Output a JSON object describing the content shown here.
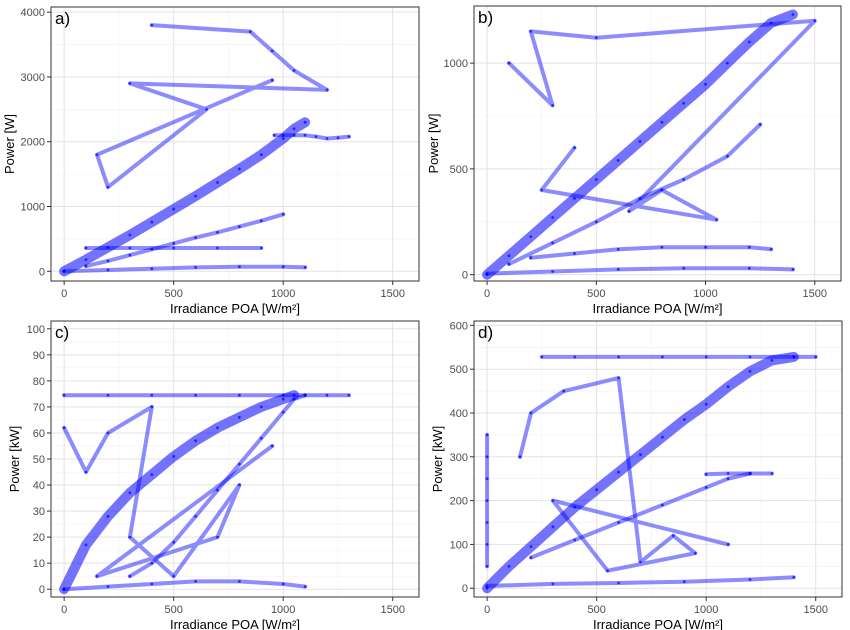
{
  "chart_data": [
    {
      "type": "scatter",
      "panel": "a)",
      "xlabel": "Irradiance POA [W/m²]",
      "ylabel": "Power [W]",
      "xlim": [
        -60,
        1620
      ],
      "ylim": [
        -150,
        4080
      ],
      "xticks": [
        0,
        500,
        1000,
        1500
      ],
      "yticks": [
        0,
        1000,
        2000,
        3000,
        4000
      ],
      "grid": true,
      "color": "#0000ff",
      "series": [
        {
          "points": [
            [
              0,
              0
            ],
            [
              100,
              180
            ],
            [
              200,
              370
            ],
            [
              300,
              560
            ],
            [
              400,
              760
            ],
            [
              500,
              960
            ],
            [
              600,
              1160
            ],
            [
              700,
              1370
            ],
            [
              800,
              1580
            ],
            [
              900,
              1800
            ],
            [
              1000,
              2050
            ],
            [
              1050,
              2200
            ],
            [
              1100,
              2300
            ]
          ]
        },
        {
          "points": [
            [
              100,
              80
            ],
            [
              200,
              160
            ],
            [
              300,
              250
            ],
            [
              400,
              340
            ],
            [
              500,
              430
            ],
            [
              600,
              520
            ],
            [
              700,
              600
            ],
            [
              800,
              690
            ],
            [
              900,
              780
            ],
            [
              1000,
              880
            ]
          ]
        },
        {
          "points": [
            [
              0,
              0
            ],
            [
              200,
              20
            ],
            [
              400,
              40
            ],
            [
              600,
              60
            ],
            [
              800,
              70
            ],
            [
              1000,
              70
            ],
            [
              1100,
              60
            ]
          ]
        },
        {
          "points": [
            [
              960,
              2100
            ],
            [
              1000,
              2100
            ],
            [
              1050,
              2100
            ],
            [
              1100,
              2100
            ],
            [
              1150,
              2080
            ],
            [
              1200,
              2050
            ],
            [
              1250,
              2060
            ],
            [
              1300,
              2080
            ]
          ]
        },
        {
          "points": [
            [
              100,
              360
            ],
            [
              300,
              360
            ],
            [
              500,
              360
            ],
            [
              700,
              360
            ],
            [
              900,
              360
            ]
          ]
        },
        {
          "points": [
            [
              400,
              3800
            ],
            [
              850,
              3700
            ],
            [
              950,
              3400
            ],
            [
              1050,
              3100
            ],
            [
              1200,
              2800
            ],
            [
              300,
              2900
            ],
            [
              650,
              2500
            ],
            [
              200,
              1300
            ],
            [
              150,
              1800
            ],
            [
              950,
              2950
            ]
          ]
        }
      ]
    },
    {
      "type": "scatter",
      "panel": "b)",
      "xlabel": "Irradiance POA [W/m²]",
      "ylabel": "Power [W]",
      "xlim": [
        -60,
        1620
      ],
      "ylim": [
        -30,
        1270
      ],
      "xticks": [
        0,
        500,
        1000,
        1500
      ],
      "yticks": [
        0,
        500,
        1000
      ],
      "grid": true,
      "color": "#0000ff",
      "series": [
        {
          "points": [
            [
              0,
              0
            ],
            [
              100,
              90
            ],
            [
              200,
              180
            ],
            [
              300,
              270
            ],
            [
              400,
              360
            ],
            [
              500,
              450
            ],
            [
              600,
              540
            ],
            [
              700,
              630
            ],
            [
              800,
              720
            ],
            [
              900,
              810
            ],
            [
              1000,
              900
            ],
            [
              1100,
              1000
            ],
            [
              1200,
              1100
            ],
            [
              1300,
              1190
            ],
            [
              1400,
              1230
            ]
          ]
        },
        {
          "points": [
            [
              100,
              50
            ],
            [
              300,
              150
            ],
            [
              500,
              250
            ],
            [
              700,
              360
            ],
            [
              900,
              450
            ],
            [
              1100,
              560
            ],
            [
              1250,
              710
            ]
          ]
        },
        {
          "points": [
            [
              0,
              5
            ],
            [
              300,
              15
            ],
            [
              600,
              25
            ],
            [
              900,
              30
            ],
            [
              1200,
              30
            ],
            [
              1400,
              25
            ]
          ]
        },
        {
          "points": [
            [
              200,
              80
            ],
            [
              400,
              100
            ],
            [
              600,
              120
            ],
            [
              800,
              130
            ],
            [
              1000,
              130
            ],
            [
              1200,
              130
            ],
            [
              1300,
              120
            ]
          ]
        },
        {
          "points": [
            [
              100,
              1000
            ],
            [
              300,
              800
            ],
            [
              200,
              1150
            ],
            [
              500,
              1120
            ],
            [
              1500,
              1200
            ],
            [
              650,
              300
            ],
            [
              800,
              400
            ],
            [
              1050,
              260
            ],
            [
              250,
              400
            ],
            [
              400,
              600
            ]
          ]
        }
      ]
    },
    {
      "type": "scatter",
      "panel": "c)",
      "xlabel": "Irradiance POA [W/m²]",
      "ylabel": "Power [kW]",
      "xlim": [
        -60,
        1620
      ],
      "ylim": [
        -3,
        103
      ],
      "xticks": [
        0,
        500,
        1000,
        1500
      ],
      "yticks": [
        0,
        10,
        20,
        30,
        40,
        50,
        60,
        70,
        80,
        90,
        100
      ],
      "grid": true,
      "color": "#0000ff",
      "series": [
        {
          "points": [
            [
              0,
              0
            ],
            [
              100,
              17
            ],
            [
              200,
              28
            ],
            [
              300,
              37
            ],
            [
              400,
              44
            ],
            [
              500,
              51
            ],
            [
              600,
              57
            ],
            [
              700,
              62
            ],
            [
              800,
              66
            ],
            [
              900,
              70
            ],
            [
              1000,
              73
            ],
            [
              1050,
              74.5
            ]
          ]
        },
        {
          "points": [
            [
              300,
              5
            ],
            [
              400,
              10
            ],
            [
              500,
              18
            ],
            [
              600,
              28
            ],
            [
              700,
              38
            ],
            [
              800,
              48
            ],
            [
              900,
              58
            ],
            [
              1000,
              68
            ],
            [
              1050,
              73
            ],
            [
              1100,
              74.5
            ]
          ]
        },
        {
          "points": [
            [
              0,
              0
            ],
            [
              200,
              1
            ],
            [
              400,
              2
            ],
            [
              600,
              3
            ],
            [
              800,
              3
            ],
            [
              1000,
              2
            ],
            [
              1100,
              1
            ]
          ]
        },
        {
          "points": [
            [
              0,
              74.5
            ],
            [
              200,
              74.5
            ],
            [
              400,
              74.5
            ],
            [
              600,
              74.5
            ],
            [
              800,
              74.5
            ],
            [
              1000,
              74.5
            ],
            [
              1100,
              74.5
            ],
            [
              1200,
              74.5
            ],
            [
              1300,
              74.5
            ]
          ]
        },
        {
          "points": [
            [
              0,
              62
            ],
            [
              100,
              45
            ],
            [
              200,
              60
            ],
            [
              400,
              70
            ],
            [
              300,
              20
            ],
            [
              500,
              5
            ],
            [
              800,
              40
            ],
            [
              700,
              20
            ],
            [
              150,
              5
            ],
            [
              950,
              55
            ]
          ]
        }
      ]
    },
    {
      "type": "scatter",
      "panel": "d)",
      "xlabel": "Irradiance POA [W/m²]",
      "ylabel": "Power [kW]",
      "xlim": [
        -60,
        1620
      ],
      "ylim": [
        -20,
        610
      ],
      "xticks": [
        0,
        500,
        1000,
        1500
      ],
      "yticks": [
        0,
        100,
        200,
        300,
        400,
        500,
        600
      ],
      "grid": true,
      "color": "#0000ff",
      "series": [
        {
          "points": [
            [
              0,
              0
            ],
            [
              100,
              50
            ],
            [
              200,
              95
            ],
            [
              300,
              140
            ],
            [
              400,
              185
            ],
            [
              500,
              225
            ],
            [
              600,
              265
            ],
            [
              700,
              305
            ],
            [
              800,
              345
            ],
            [
              900,
              385
            ],
            [
              1000,
              420
            ],
            [
              1100,
              460
            ],
            [
              1200,
              495
            ],
            [
              1300,
              520
            ],
            [
              1400,
              528
            ]
          ]
        },
        {
          "points": [
            [
              200,
              70
            ],
            [
              400,
              110
            ],
            [
              600,
              150
            ],
            [
              800,
              190
            ],
            [
              1000,
              230
            ],
            [
              1100,
              250
            ],
            [
              1200,
              262
            ]
          ]
        },
        {
          "points": [
            [
              0,
              5
            ],
            [
              300,
              10
            ],
            [
              600,
              12
            ],
            [
              900,
              15
            ],
            [
              1200,
              20
            ],
            [
              1400,
              25
            ]
          ]
        },
        {
          "points": [
            [
              250,
              528
            ],
            [
              400,
              528
            ],
            [
              600,
              528
            ],
            [
              800,
              528
            ],
            [
              1000,
              528
            ],
            [
              1200,
              528
            ],
            [
              1400,
              528
            ],
            [
              1500,
              528
            ]
          ]
        },
        {
          "points": [
            [
              1000,
              260
            ],
            [
              1100,
              262
            ],
            [
              1200,
              262
            ],
            [
              1300,
              262
            ]
          ]
        },
        {
          "points": [
            [
              0,
              350
            ],
            [
              0,
              300
            ],
            [
              0,
              250
            ],
            [
              0,
              200
            ],
            [
              0,
              150
            ],
            [
              0,
              100
            ],
            [
              0,
              50
            ]
          ]
        },
        {
          "points": [
            [
              150,
              300
            ],
            [
              200,
              400
            ],
            [
              350,
              450
            ],
            [
              600,
              480
            ],
            [
              700,
              60
            ],
            [
              850,
              120
            ],
            [
              950,
              80
            ],
            [
              550,
              40
            ],
            [
              300,
              200
            ],
            [
              1100,
              100
            ]
          ]
        }
      ]
    }
  ]
}
